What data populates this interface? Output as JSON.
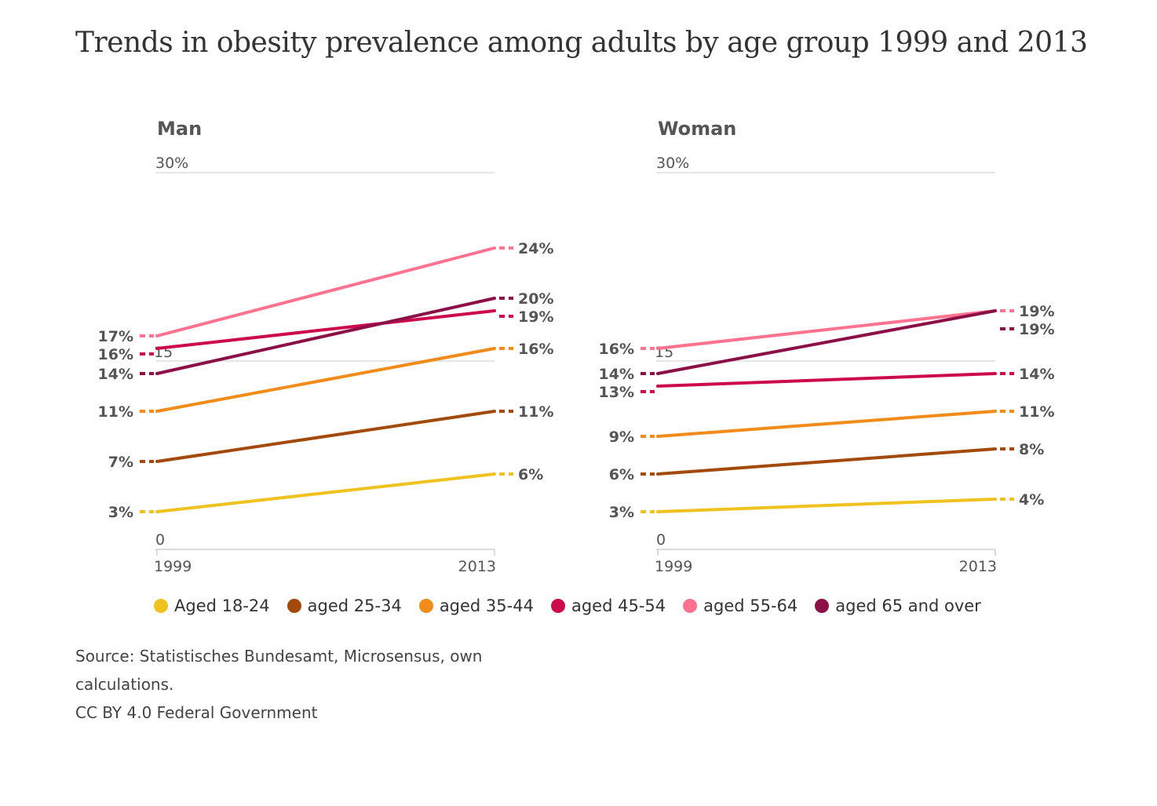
{
  "title": "Trends in obesity prevalence among adults by age group 1999 and 2013",
  "colors": {
    "aged_18_24": "#f0c21f",
    "aged_25_34": "#a34a0b",
    "aged_35_44": "#f18c1a",
    "aged_45_54": "#cc0a4c",
    "aged_55_64": "#ff7390",
    "aged_65_over": "#8c0f48"
  },
  "legend": [
    {
      "key": "aged_18_24",
      "label": "Aged 18-24"
    },
    {
      "key": "aged_25_34",
      "label": "aged 25-34"
    },
    {
      "key": "aged_35_44",
      "label": "aged 35-44"
    },
    {
      "key": "aged_45_54",
      "label": "aged 45-54"
    },
    {
      "key": "aged_55_64",
      "label": "aged 55-64"
    },
    {
      "key": "aged_65_over",
      "label": "aged 65 and over"
    }
  ],
  "source": {
    "line1": "Source: Statistisches Bundesamt, Microsensus, own calculations.",
    "line2": "CC BY 4.0 Federal Government"
  },
  "chart_data": [
    {
      "type": "line",
      "title": "Man",
      "x": [
        "1999",
        "2013"
      ],
      "ylim": [
        0,
        30
      ],
      "ytick_labels": {
        "top": "30%",
        "bottom": "0"
      },
      "grid": true,
      "stray_label": "15",
      "series": [
        {
          "name": "Aged 18-24",
          "key": "aged_18_24",
          "values": [
            3,
            6
          ],
          "labels": [
            "3%",
            "6%"
          ]
        },
        {
          "name": "aged 25-34",
          "key": "aged_25_34",
          "values": [
            7,
            11
          ],
          "labels": [
            "7%",
            "11%"
          ]
        },
        {
          "name": "aged 35-44",
          "key": "aged_35_44",
          "values": [
            11,
            16
          ],
          "labels": [
            "11%",
            "16%"
          ]
        },
        {
          "name": "aged 45-54",
          "key": "aged_45_54",
          "values": [
            16,
            19
          ],
          "labels": [
            "16%",
            "19%"
          ]
        },
        {
          "name": "aged 55-64",
          "key": "aged_55_64",
          "values": [
            17,
            24
          ],
          "labels": [
            "17%",
            "24%"
          ]
        },
        {
          "name": "aged 65 and over",
          "key": "aged_65_over",
          "values": [
            14,
            20
          ],
          "labels": [
            "14%",
            "20%"
          ]
        }
      ]
    },
    {
      "type": "line",
      "title": "Woman",
      "x": [
        "1999",
        "2013"
      ],
      "ylim": [
        0,
        30
      ],
      "ytick_labels": {
        "top": "30%",
        "bottom": "0"
      },
      "grid": true,
      "stray_label": "15",
      "series": [
        {
          "name": "Aged 18-24",
          "key": "aged_18_24",
          "values": [
            3,
            4
          ],
          "labels": [
            "3%",
            "4%"
          ]
        },
        {
          "name": "aged 25-34",
          "key": "aged_25_34",
          "values": [
            6,
            8
          ],
          "labels": [
            "6%",
            "8%"
          ]
        },
        {
          "name": "aged 35-44",
          "key": "aged_35_44",
          "values": [
            9,
            11
          ],
          "labels": [
            "9%",
            "11%"
          ]
        },
        {
          "name": "aged 45-54",
          "key": "aged_45_54",
          "values": [
            13,
            14
          ],
          "labels": [
            "13%",
            "14%"
          ]
        },
        {
          "name": "aged 55-64",
          "key": "aged_55_64",
          "values": [
            16,
            19
          ],
          "labels": [
            "16%",
            "19%"
          ]
        },
        {
          "name": "aged 65 and over",
          "key": "aged_65_over",
          "values": [
            14,
            19
          ],
          "labels": [
            "14%",
            "19%"
          ]
        }
      ]
    }
  ]
}
